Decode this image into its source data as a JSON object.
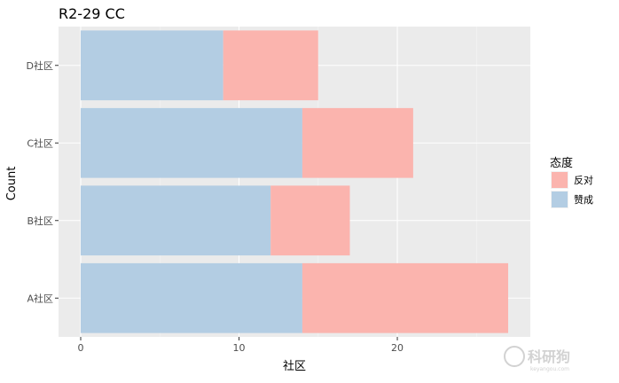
{
  "chart_data": {
    "type": "bar",
    "orientation": "horizontal",
    "stacked": true,
    "title": "R2-29 CC",
    "xlabel": "社区",
    "ylabel": "Count",
    "categories": [
      "A社区",
      "B社区",
      "C社区",
      "D社区"
    ],
    "series": [
      {
        "name": "赞成",
        "values": [
          14,
          12,
          14,
          9
        ],
        "color": "#b3cde3"
      },
      {
        "name": "反对",
        "values": [
          13,
          5,
          7,
          6
        ],
        "color": "#fbb4ae"
      }
    ],
    "xlim": [
      -1.4,
      28.4
    ],
    "xticks": [
      0,
      10,
      20
    ],
    "grid": true,
    "legend": {
      "title": "态度",
      "position": "right",
      "order": [
        "反对",
        "赞成"
      ]
    },
    "panel_background": "#ebebeb"
  },
  "watermark": {
    "text": "科研狗",
    "subtext": "keyangou.com"
  }
}
